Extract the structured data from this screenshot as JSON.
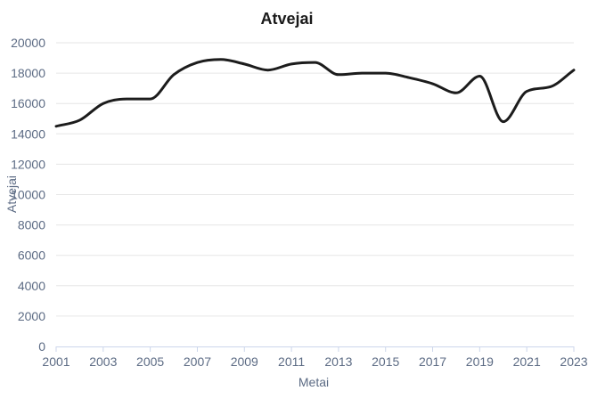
{
  "chart_data": {
    "type": "line",
    "title": "Atvejai",
    "xlabel": "Metai",
    "ylabel": "Atvejai",
    "x": [
      2001,
      2002,
      2003,
      2004,
      2005,
      2006,
      2007,
      2008,
      2009,
      2010,
      2011,
      2012,
      2013,
      2014,
      2015,
      2016,
      2017,
      2018,
      2019,
      2020,
      2021,
      2022,
      2023
    ],
    "series": [
      {
        "values": [
          14500,
          14900,
          16000,
          16300,
          16300,
          17900,
          18700,
          18900,
          18600,
          18200,
          18600,
          18700,
          17900,
          18000,
          18000,
          17700,
          17300,
          16700,
          17800,
          14800,
          16800,
          17100,
          18200
        ]
      }
    ],
    "x_ticks": [
      "2001",
      "2003",
      "2005",
      "2007",
      "2009",
      "2011",
      "2013",
      "2015",
      "2017",
      "2019",
      "2021",
      "2023"
    ],
    "y_ticks": [
      "0",
      "2000",
      "4000",
      "6000",
      "8000",
      "10000",
      "12000",
      "14000",
      "16000",
      "18000",
      "20000"
    ],
    "xlim": [
      2001,
      2023
    ],
    "ylim": [
      0,
      20000
    ],
    "grid": "horizontal",
    "legend": "none",
    "line_color": "#1c1c1c",
    "grid_color": "#e6e6e6",
    "tick_color": "#5c6b84"
  }
}
